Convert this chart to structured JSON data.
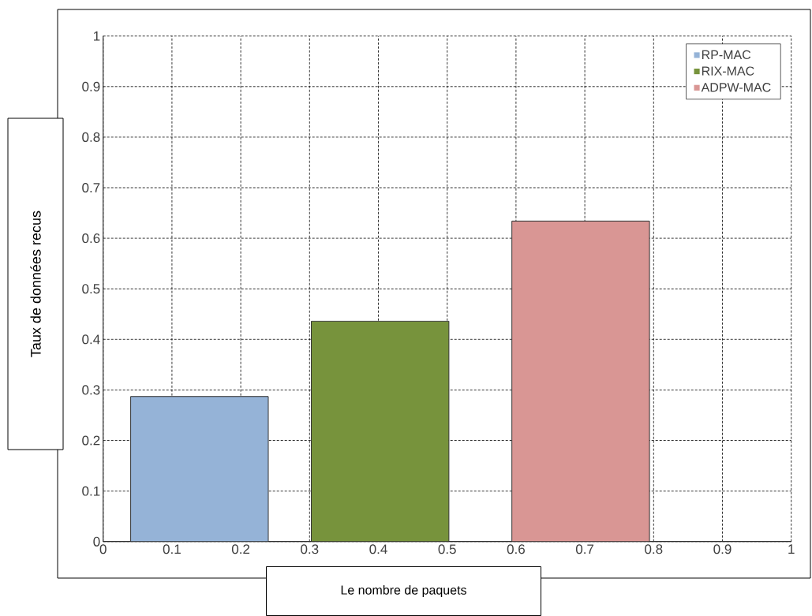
{
  "chart_data": {
    "type": "bar",
    "xlabel": "Le nombre de paquets",
    "ylabel": "Taux de données recus",
    "series": [
      {
        "name": "RP-MAC",
        "color": "#95b3d7",
        "x": [
          0.14
        ],
        "values": [
          0.287
        ]
      },
      {
        "name": "RIX-MAC",
        "color": "#77933c",
        "x": [
          0.4025
        ],
        "values": [
          0.436
        ]
      },
      {
        "name": "ADPW-MAC",
        "color": "#d99694",
        "x": [
          0.694
        ],
        "values": [
          0.634
        ]
      }
    ],
    "xlim": [
      0,
      1
    ],
    "ylim": [
      0,
      1
    ],
    "xticks": [
      0,
      0.1,
      0.2,
      0.3,
      0.4,
      0.5,
      0.6,
      0.7,
      0.8,
      0.9,
      1
    ],
    "yticks": [
      0,
      0.1,
      0.2,
      0.3,
      0.4,
      0.5,
      0.6,
      0.7,
      0.8,
      0.9,
      1
    ],
    "grid": true,
    "legend": "top right"
  }
}
